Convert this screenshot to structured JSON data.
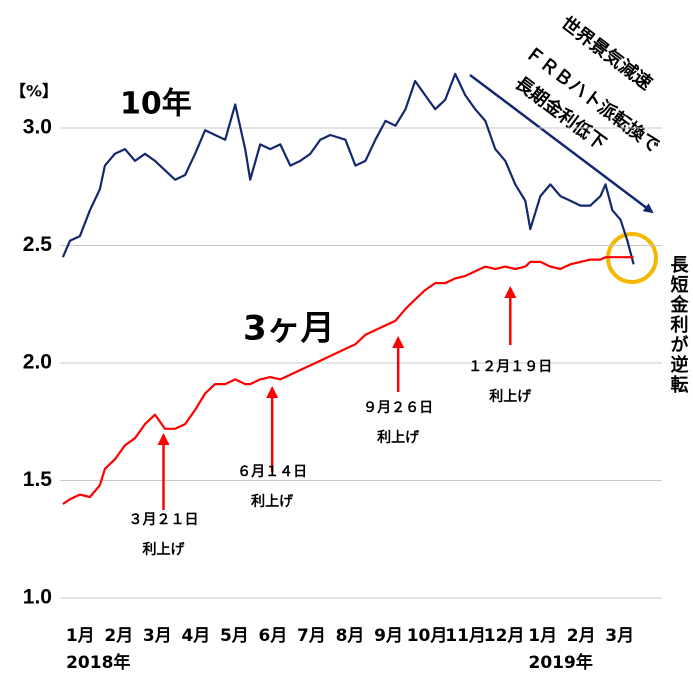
{
  "chart_data": {
    "type": "line",
    "y_label": "【%】",
    "annotations_text": [
      "世界景気減速",
      "ＦＲＢハト派転換で",
      "長期金利低下"
    ],
    "inversion_note": "長短金利が逆転",
    "year_labels": [
      {
        "x": 0.5,
        "label": "2018年"
      },
      {
        "x": 12.5,
        "label": "2019年"
      }
    ],
    "x": [
      0.05,
      0.23,
      0.49,
      0.75,
      1.01,
      1.14,
      1.4,
      1.66,
      1.92,
      2.18,
      2.44,
      2.7,
      2.96,
      3.22,
      3.48,
      3.74,
      4.0,
      4.26,
      4.52,
      4.78,
      4.91,
      5.17,
      5.43,
      5.69,
      5.95,
      6.21,
      6.47,
      6.73,
      6.99,
      7.38,
      7.64,
      7.9,
      8.16,
      8.42,
      8.68,
      8.94,
      9.19,
      9.45,
      9.71,
      9.97,
      10.23,
      10.49,
      10.75,
      11.01,
      11.27,
      11.53,
      11.79,
      12.05,
      12.18,
      12.44,
      12.7,
      12.96,
      13.22,
      13.48,
      13.74,
      14.0,
      14.13,
      14.31,
      14.52,
      14.7,
      14.86
    ],
    "series": [
      {
        "name": "10年",
        "color": "#14286e",
        "values": [
          2.45,
          2.52,
          2.54,
          2.65,
          2.74,
          2.84,
          2.89,
          2.91,
          2.86,
          2.89,
          2.86,
          2.82,
          2.78,
          2.8,
          2.89,
          2.99,
          2.97,
          2.95,
          3.1,
          2.91,
          2.78,
          2.93,
          2.91,
          2.93,
          2.84,
          2.86,
          2.89,
          2.95,
          2.97,
          2.95,
          2.84,
          2.86,
          2.95,
          3.03,
          3.01,
          3.08,
          3.2,
          3.14,
          3.08,
          3.12,
          3.23,
          3.14,
          3.08,
          3.03,
          2.91,
          2.86,
          2.76,
          2.69,
          2.57,
          2.71,
          2.76,
          2.71,
          2.69,
          2.67,
          2.67,
          2.71,
          2.76,
          2.65,
          2.61,
          2.52,
          2.42
        ]
      },
      {
        "name": "3ヶ月",
        "color": "#ff0000",
        "values": [
          1.4,
          1.42,
          1.44,
          1.43,
          1.48,
          1.55,
          1.59,
          1.65,
          1.68,
          1.74,
          1.78,
          1.72,
          1.72,
          1.74,
          1.8,
          1.87,
          1.91,
          1.91,
          1.93,
          1.91,
          1.91,
          1.93,
          1.94,
          1.93,
          1.95,
          1.97,
          1.99,
          2.01,
          2.03,
          2.06,
          2.08,
          2.12,
          2.14,
          2.16,
          2.18,
          2.23,
          2.27,
          2.31,
          2.34,
          2.34,
          2.36,
          2.37,
          2.39,
          2.41,
          2.4,
          2.41,
          2.4,
          2.41,
          2.43,
          2.43,
          2.41,
          2.4,
          2.42,
          2.43,
          2.44,
          2.44,
          2.45,
          2.45,
          2.45,
          2.45,
          2.45
        ]
      }
    ],
    "events": [
      {
        "x": 2.66,
        "date": "３月２１日",
        "text": "利上げ"
      },
      {
        "x": 5.48,
        "date": "６月１４日",
        "text": "利上げ"
      },
      {
        "x": 8.75,
        "date": "９月２６日",
        "text": "利上げ"
      },
      {
        "x": 11.66,
        "date": "１２月１９日",
        "text": "利上げ"
      }
    ],
    "xlim": [
      0,
      15
    ],
    "xticks": [
      {
        "value": 0.5,
        "label": "1月"
      },
      {
        "value": 1.5,
        "label": "2月"
      },
      {
        "value": 2.5,
        "label": "3月"
      },
      {
        "value": 3.5,
        "label": "4月"
      },
      {
        "value": 4.5,
        "label": "5月"
      },
      {
        "value": 5.5,
        "label": "6月"
      },
      {
        "value": 6.5,
        "label": "7月"
      },
      {
        "value": 7.5,
        "label": "8月"
      },
      {
        "value": 8.5,
        "label": "9月"
      },
      {
        "value": 9.5,
        "label": "10月"
      },
      {
        "value": 10.5,
        "label": "11月"
      },
      {
        "value": 11.5,
        "label": "12月"
      },
      {
        "value": 12.5,
        "label": "1月"
      },
      {
        "value": 13.5,
        "label": "2月"
      },
      {
        "value": 14.5,
        "label": "3月"
      }
    ],
    "ylim": [
      1.0,
      3.3
    ],
    "yticks": [
      {
        "value": 1.0,
        "label": "1.0"
      },
      1.5,
      {
        "value": 2.0,
        "label": "2.0"
      },
      2.5,
      {
        "value": 3.0,
        "label": "3.0"
      }
    ],
    "grid": true
  }
}
